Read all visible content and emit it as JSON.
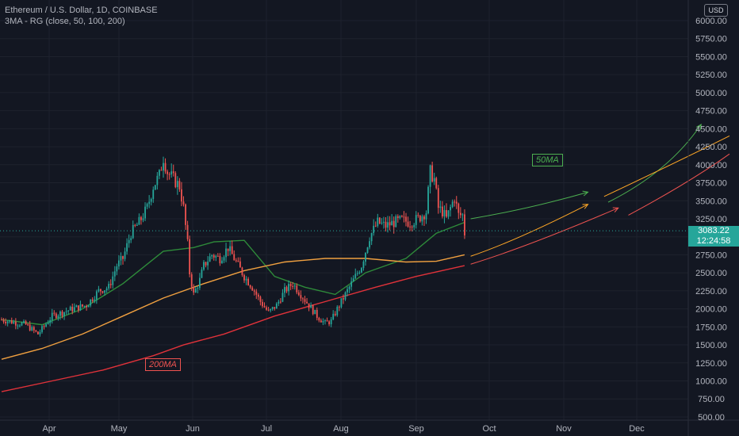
{
  "header": {
    "title": "Ethereum / U.S. Dollar, 1D, COINBASE",
    "indicator": "3MA - RG (close, 50, 100, 200)"
  },
  "currency": "USD",
  "price_badge": {
    "price": "3083.22",
    "countdown": "12:24:58",
    "color": "#26a69a"
  },
  "annotations": {
    "ma50": "50MA",
    "ma200": "200MA"
  },
  "colors": {
    "background": "#131722",
    "grid": "#1e222d",
    "up": "#26a69a",
    "down": "#ef5350",
    "ma50": "#2e8b3a",
    "ma100": "#f0a040",
    "ma200": "#e0323a",
    "proj_ma50": "#4caf50",
    "proj_ma100": "#ffa726",
    "proj_ma200": "#ef5350",
    "text": "#b2b5be"
  },
  "chart_data": {
    "type": "candlestick",
    "y_ticks": [
      "6000.00",
      "5750.00",
      "5500.00",
      "5250.00",
      "5000.00",
      "4750.00",
      "4500.00",
      "4250.00",
      "4000.00",
      "3750.00",
      "3500.00",
      "3250.00",
      "3000.00",
      "2750.00",
      "2500.00",
      "2250.00",
      "2000.00",
      "1750.00",
      "1500.00",
      "1250.00",
      "1000.00",
      "750.00",
      "500.00"
    ],
    "x_ticks": [
      "Apr",
      "May",
      "Jun",
      "Jul",
      "Aug",
      "Sep",
      "Oct",
      "Nov",
      "Dec"
    ],
    "ylim": [
      300,
      6100
    ],
    "last_price": 3083.22,
    "key_closes": [
      {
        "i": 0,
        "v": 1850
      },
      {
        "i": 12,
        "v": 1780
      },
      {
        "i": 18,
        "v": 1650
      },
      {
        "i": 25,
        "v": 1900
      },
      {
        "i": 35,
        "v": 2000
      },
      {
        "i": 42,
        "v": 2050
      },
      {
        "i": 48,
        "v": 2250
      },
      {
        "i": 53,
        "v": 2300
      },
      {
        "i": 57,
        "v": 2600
      },
      {
        "i": 60,
        "v": 2700
      },
      {
        "i": 64,
        "v": 3050
      },
      {
        "i": 68,
        "v": 3200
      },
      {
        "i": 72,
        "v": 3400
      },
      {
        "i": 75,
        "v": 3700
      },
      {
        "i": 78,
        "v": 3850
      },
      {
        "i": 80,
        "v": 4100
      },
      {
        "i": 82,
        "v": 3900
      },
      {
        "i": 85,
        "v": 3800
      },
      {
        "i": 88,
        "v": 3700
      },
      {
        "i": 90,
        "v": 3400
      },
      {
        "i": 92,
        "v": 2900
      },
      {
        "i": 93,
        "v": 2500
      },
      {
        "i": 95,
        "v": 2200
      },
      {
        "i": 98,
        "v": 2400
      },
      {
        "i": 100,
        "v": 2600
      },
      {
        "i": 104,
        "v": 2750
      },
      {
        "i": 108,
        "v": 2700
      },
      {
        "i": 112,
        "v": 2850
      },
      {
        "i": 116,
        "v": 2650
      },
      {
        "i": 120,
        "v": 2450
      },
      {
        "i": 124,
        "v": 2300
      },
      {
        "i": 128,
        "v": 2100
      },
      {
        "i": 132,
        "v": 1950
      },
      {
        "i": 136,
        "v": 2050
      },
      {
        "i": 140,
        "v": 2250
      },
      {
        "i": 144,
        "v": 2350
      },
      {
        "i": 148,
        "v": 2200
      },
      {
        "i": 152,
        "v": 2050
      },
      {
        "i": 156,
        "v": 1900
      },
      {
        "i": 160,
        "v": 1800
      },
      {
        "i": 163,
        "v": 1830
      },
      {
        "i": 166,
        "v": 2000
      },
      {
        "i": 170,
        "v": 2200
      },
      {
        "i": 174,
        "v": 2400
      },
      {
        "i": 178,
        "v": 2600
      },
      {
        "i": 182,
        "v": 3000
      },
      {
        "i": 186,
        "v": 3200
      },
      {
        "i": 190,
        "v": 3150
      },
      {
        "i": 194,
        "v": 3200
      },
      {
        "i": 198,
        "v": 3230
      },
      {
        "i": 202,
        "v": 3200
      },
      {
        "i": 206,
        "v": 3250
      },
      {
        "i": 210,
        "v": 3350
      },
      {
        "i": 212,
        "v": 3900
      },
      {
        "i": 214,
        "v": 3800
      },
      {
        "i": 216,
        "v": 3400
      },
      {
        "i": 218,
        "v": 3350
      },
      {
        "i": 220,
        "v": 3250
      },
      {
        "i": 222,
        "v": 3400
      },
      {
        "i": 224,
        "v": 3550
      },
      {
        "i": 226,
        "v": 3300
      },
      {
        "i": 228,
        "v": 3300
      },
      {
        "i": 229,
        "v": 3050
      }
    ],
    "series": [
      {
        "name": "50MA",
        "points": [
          [
            0,
            1850
          ],
          [
            20,
            1780
          ],
          [
            40,
            2000
          ],
          [
            60,
            2350
          ],
          [
            80,
            2800
          ],
          [
            95,
            2850
          ],
          [
            105,
            2930
          ],
          [
            120,
            2950
          ],
          [
            135,
            2450
          ],
          [
            150,
            2300
          ],
          [
            165,
            2200
          ],
          [
            180,
            2500
          ],
          [
            200,
            2700
          ],
          [
            215,
            3050
          ],
          [
            229,
            3200
          ]
        ]
      },
      {
        "name": "",
        "points": [
          [
            0,
            1300
          ],
          [
            20,
            1450
          ],
          [
            40,
            1650
          ],
          [
            60,
            1900
          ],
          [
            80,
            2150
          ],
          [
            100,
            2350
          ],
          [
            120,
            2530
          ],
          [
            140,
            2650
          ],
          [
            160,
            2700
          ],
          [
            180,
            2700
          ],
          [
            200,
            2650
          ],
          [
            215,
            2660
          ],
          [
            229,
            2750
          ]
        ]
      },
      {
        "name": "200MA",
        "points": [
          [
            0,
            850
          ],
          [
            25,
            1000
          ],
          [
            50,
            1150
          ],
          [
            75,
            1350
          ],
          [
            90,
            1500
          ],
          [
            110,
            1650
          ],
          [
            135,
            1900
          ],
          [
            160,
            2100
          ],
          [
            185,
            2300
          ],
          [
            205,
            2450
          ],
          [
            229,
            2600
          ]
        ]
      }
    ],
    "projections": [
      {
        "points": [
          [
            232,
            3250
          ],
          [
            260,
            3380
          ],
          [
            290,
            3620
          ]
        ],
        "arrow": true
      },
      {
        "points": [
          [
            232,
            2730
          ],
          [
            255,
            2950
          ],
          [
            290,
            3450
          ]
        ],
        "arrow": true
      },
      {
        "points": [
          [
            232,
            2620
          ],
          [
            260,
            2860
          ],
          [
            305,
            3400
          ]
        ],
        "arrow": true
      },
      {
        "points": [
          [
            300,
            3480
          ],
          [
            330,
            3900
          ],
          [
            346,
            4560
          ]
        ],
        "arrow": true
      },
      {
        "points": [
          [
            298,
            3560
          ],
          [
            335,
            4050
          ],
          [
            360,
            4400
          ]
        ],
        "arrow": false
      },
      {
        "points": [
          [
            310,
            3300
          ],
          [
            340,
            3750
          ],
          [
            360,
            4150
          ]
        ],
        "arrow": false
      }
    ]
  }
}
